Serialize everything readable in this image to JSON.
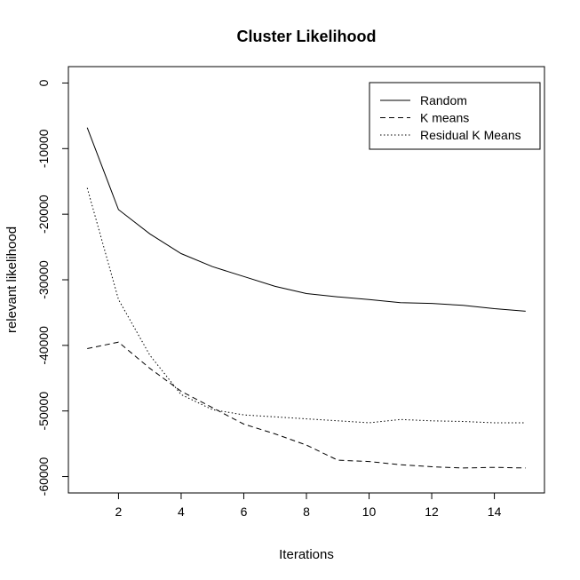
{
  "chart_data": {
    "type": "line",
    "title": "Cluster Likelihood",
    "xlabel": "Iterations",
    "ylabel": "relevant likelihood",
    "xlim": [
      0.4,
      15.6
    ],
    "ylim": [
      -62500,
      2500
    ],
    "x_ticks": [
      2,
      4,
      6,
      8,
      10,
      12,
      14
    ],
    "y_ticks": [
      0,
      -10000,
      -20000,
      -30000,
      -40000,
      -50000,
      -60000
    ],
    "x": [
      1,
      2,
      3,
      4,
      5,
      6,
      7,
      8,
      9,
      10,
      11,
      12,
      13,
      14,
      15
    ],
    "legend_position": "top-right",
    "series": [
      {
        "name": "Random",
        "dash": "solid",
        "values": [
          -6800,
          -19300,
          -23000,
          -26000,
          -28000,
          -29500,
          -31000,
          -32100,
          -32600,
          -33000,
          -33500,
          -33600,
          -33900,
          -34400,
          -34800
        ]
      },
      {
        "name": "K means",
        "dash": "dashed",
        "values": [
          -40500,
          -39500,
          -43500,
          -47000,
          -49500,
          -52000,
          -53500,
          -55200,
          -57500,
          -57700,
          -58200,
          -58500,
          -58700,
          -58600,
          -58700
        ]
      },
      {
        "name": "Residual K Means",
        "dash": "dotted",
        "values": [
          -16000,
          -33000,
          -41500,
          -47500,
          -49800,
          -50600,
          -50900,
          -51200,
          -51500,
          -51800,
          -51300,
          -51500,
          -51600,
          -51800,
          -51800
        ]
      }
    ]
  }
}
